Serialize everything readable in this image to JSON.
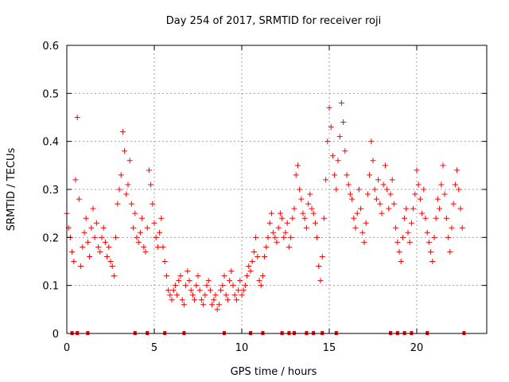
{
  "chart_data": {
    "type": "scatter",
    "title": "Day 254 of 2017, SRMTID for receiver roji",
    "xlabel": "GPS time / hours",
    "ylabel": "SRMTID / TECUs",
    "xlim": [
      0,
      24
    ],
    "ylim": [
      0,
      0.6
    ],
    "xticks": [
      0,
      5,
      10,
      15,
      20
    ],
    "xtick_labels": [
      "0",
      "5",
      "10",
      "15",
      "20"
    ],
    "yticks": [
      0,
      0.1,
      0.2,
      0.3,
      0.4,
      0.5,
      0.6
    ],
    "ytick_labels": [
      "0",
      "0.1",
      "0.2",
      "0.3",
      "0.4",
      "0.5",
      "0.6"
    ],
    "grid": true,
    "marker": "+",
    "color": "#ff0000",
    "series": [
      {
        "name": "SRMTID",
        "x": [
          0.0,
          0.1,
          0.2,
          0.3,
          0.4,
          0.5,
          0.6,
          0.7,
          0.8,
          0.9,
          1.0,
          1.1,
          1.2,
          1.3,
          1.4,
          1.5,
          1.6,
          1.7,
          1.8,
          1.9,
          2.0,
          2.1,
          2.2,
          2.3,
          2.4,
          2.5,
          2.6,
          2.7,
          2.8,
          2.9,
          3.0,
          3.1,
          3.2,
          3.3,
          3.4,
          3.5,
          3.6,
          3.7,
          3.8,
          3.9,
          4.0,
          4.1,
          4.2,
          4.3,
          4.4,
          4.5,
          4.6,
          4.7,
          4.8,
          4.9,
          5.0,
          5.1,
          5.2,
          5.3,
          5.4,
          5.5,
          5.6,
          5.7,
          5.8,
          5.9,
          6.0,
          6.1,
          6.2,
          6.3,
          6.4,
          6.5,
          6.6,
          6.7,
          6.8,
          6.9,
          7.0,
          7.1,
          7.2,
          7.3,
          7.4,
          7.5,
          7.6,
          7.7,
          7.8,
          7.9,
          8.0,
          8.1,
          8.2,
          8.3,
          8.4,
          8.5,
          8.6,
          8.7,
          8.8,
          8.9,
          9.0,
          9.1,
          9.2,
          9.3,
          9.4,
          9.5,
          9.6,
          9.7,
          9.8,
          9.9,
          10.0,
          10.1,
          10.2,
          10.3,
          10.4,
          10.5,
          10.6,
          10.7,
          10.8,
          10.9,
          11.0,
          11.1,
          11.2,
          11.3,
          11.4,
          11.5,
          11.6,
          11.7,
          11.8,
          11.9,
          12.0,
          12.1,
          12.2,
          12.3,
          12.4,
          12.5,
          12.6,
          12.7,
          12.8,
          12.9,
          13.0,
          13.1,
          13.2,
          13.3,
          13.4,
          13.5,
          13.6,
          13.7,
          13.8,
          13.9,
          14.0,
          14.1,
          14.2,
          14.3,
          14.4,
          14.5,
          14.6,
          14.7,
          14.8,
          14.9,
          15.0,
          15.1,
          15.2,
          15.3,
          15.4,
          15.5,
          15.6,
          15.7,
          15.8,
          15.9,
          16.0,
          16.1,
          16.2,
          16.3,
          16.4,
          16.5,
          16.6,
          16.7,
          16.8,
          16.9,
          17.0,
          17.1,
          17.2,
          17.3,
          17.4,
          17.5,
          17.6,
          17.7,
          17.8,
          17.9,
          18.0,
          18.1,
          18.2,
          18.3,
          18.4,
          18.5,
          18.6,
          18.7,
          18.8,
          18.9,
          19.0,
          19.1,
          19.2,
          19.3,
          19.4,
          19.5,
          19.6,
          19.7,
          19.8,
          19.9,
          20.0,
          20.1,
          20.2,
          20.3,
          20.4,
          20.5,
          20.6,
          20.7,
          20.8,
          20.9,
          21.0,
          21.1,
          21.2,
          21.3,
          21.4,
          21.5,
          21.6,
          21.7,
          21.8,
          21.9,
          22.0,
          22.1,
          22.2,
          22.3,
          22.4,
          22.5,
          22.6
        ],
        "y": [
          0.25,
          0.22,
          0.2,
          0.17,
          0.15,
          0.32,
          0.45,
          0.28,
          0.14,
          0.18,
          0.21,
          0.24,
          0.19,
          0.16,
          0.22,
          0.26,
          0.2,
          0.23,
          0.18,
          0.17,
          0.2,
          0.22,
          0.19,
          0.16,
          0.18,
          0.15,
          0.14,
          0.12,
          0.2,
          0.27,
          0.3,
          0.33,
          0.42,
          0.38,
          0.29,
          0.31,
          0.36,
          0.27,
          0.22,
          0.25,
          0.2,
          0.19,
          0.21,
          0.24,
          0.18,
          0.17,
          0.22,
          0.34,
          0.31,
          0.27,
          0.23,
          0.2,
          0.18,
          0.21,
          0.24,
          0.18,
          0.15,
          0.12,
          0.09,
          0.08,
          0.07,
          0.09,
          0.1,
          0.08,
          0.11,
          0.12,
          0.07,
          0.06,
          0.1,
          0.13,
          0.11,
          0.09,
          0.08,
          0.07,
          0.1,
          0.12,
          0.09,
          0.07,
          0.06,
          0.08,
          0.1,
          0.11,
          0.09,
          0.06,
          0.07,
          0.08,
          0.05,
          0.06,
          0.09,
          0.1,
          0.12,
          0.08,
          0.07,
          0.11,
          0.13,
          0.1,
          0.08,
          0.07,
          0.09,
          0.11,
          0.08,
          0.09,
          0.1,
          0.12,
          0.14,
          0.13,
          0.15,
          0.17,
          0.2,
          0.16,
          0.11,
          0.1,
          0.12,
          0.16,
          0.18,
          0.2,
          0.23,
          0.25,
          0.21,
          0.2,
          0.19,
          0.22,
          0.25,
          0.24,
          0.2,
          0.21,
          0.23,
          0.18,
          0.2,
          0.24,
          0.26,
          0.33,
          0.35,
          0.3,
          0.28,
          0.25,
          0.24,
          0.22,
          0.27,
          0.29,
          0.26,
          0.25,
          0.23,
          0.2,
          0.14,
          0.11,
          0.16,
          0.24,
          0.32,
          0.4,
          0.47,
          0.43,
          0.37,
          0.33,
          0.3,
          0.36,
          0.41,
          0.48,
          0.44,
          0.38,
          0.33,
          0.31,
          0.29,
          0.28,
          0.24,
          0.22,
          0.25,
          0.3,
          0.26,
          0.21,
          0.19,
          0.23,
          0.29,
          0.33,
          0.4,
          0.36,
          0.3,
          0.28,
          0.32,
          0.27,
          0.25,
          0.31,
          0.35,
          0.3,
          0.26,
          0.29,
          0.32,
          0.27,
          0.22,
          0.19,
          0.17,
          0.15,
          0.2,
          0.24,
          0.26,
          0.21,
          0.19,
          0.23,
          0.26,
          0.29,
          0.34,
          0.31,
          0.28,
          0.25,
          0.3,
          0.24,
          0.21,
          0.19,
          0.17,
          0.15,
          0.2,
          0.24,
          0.28,
          0.26,
          0.31,
          0.35,
          0.29,
          0.24,
          0.2,
          0.17,
          0.22,
          0.27,
          0.31,
          0.34,
          0.3,
          0.26,
          0.22
        ]
      }
    ],
    "ground_marks_x": [
      0.3,
      0.6,
      1.2,
      3.9,
      4.6,
      5.6,
      6.7,
      9.0,
      10.5,
      11.2,
      12.3,
      12.7,
      13.0,
      13.7,
      14.1,
      14.6,
      15.4,
      18.5,
      18.9,
      19.3,
      19.7,
      20.6,
      22.7
    ]
  }
}
